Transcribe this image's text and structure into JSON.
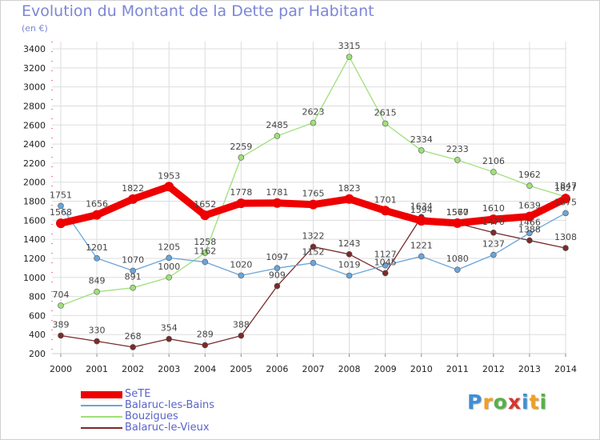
{
  "chart_data": {
    "type": "line",
    "title": "Evolution du Montant de la Dette par Habitant",
    "subtitle": "(en €)",
    "x": [
      "2000",
      "2001",
      "2002",
      "2003",
      "2004",
      "2005",
      "2006",
      "2007",
      "2008",
      "2009",
      "2010",
      "2011",
      "2012",
      "2013",
      "2014"
    ],
    "yticks": [
      200,
      400,
      600,
      800,
      1000,
      1200,
      1400,
      1600,
      1800,
      2000,
      2200,
      2400,
      2600,
      2800,
      3000,
      3200,
      3400
    ],
    "ylim": [
      200,
      3400
    ],
    "grid": true,
    "legend_position": "bottom-left",
    "series": [
      {
        "name": "SeTE",
        "color": "#ee0000",
        "values": [
          1568,
          1656,
          1822,
          1953,
          1652,
          1778,
          1781,
          1765,
          1823,
          1701,
          1594,
          1570,
          1610,
          1639,
          1827
        ]
      },
      {
        "name": "Balaruc-les-Bains",
        "color": "#6aa5d8",
        "values": [
          1751,
          1201,
          1070,
          1205,
          1162,
          1020,
          1097,
          1152,
          1019,
          1127,
          1221,
          1080,
          1237,
          1466,
          1675
        ]
      },
      {
        "name": "Bouzigues",
        "color": "#9ee07a",
        "values": [
          704,
          849,
          891,
          1000,
          1258,
          2259,
          2485,
          2623,
          3315,
          2615,
          2334,
          2233,
          2106,
          1962,
          1847
        ]
      },
      {
        "name": "Balaruc-le-Vieux",
        "color": "#7a2b2b",
        "values": [
          389,
          330,
          268,
          354,
          289,
          388,
          909,
          1322,
          1243,
          1045,
          1634,
          1567,
          1470,
          1388,
          1308
        ]
      }
    ]
  },
  "logo": {
    "letters": [
      "P",
      "r",
      "o",
      "x",
      "i",
      "t",
      "i"
    ],
    "colors": [
      "#3f8fd6",
      "#f0a020",
      "#58b048",
      "#d8342c",
      "#3f8fd6",
      "#f0a020",
      "#58b048"
    ]
  }
}
